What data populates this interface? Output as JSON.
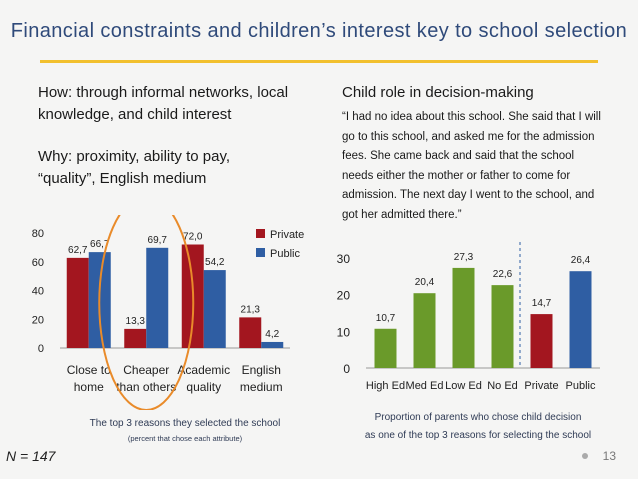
{
  "slide": {
    "title": "Financial constraints and children’s interest key to school selection",
    "how_line1": "How: through informal networks, local",
    "how_line2": "knowledge, and child interest",
    "why_line1": "Why: proximity, ability to pay,",
    "why_line2": "“quality”, English medium",
    "right_heading": "Child role in decision-making",
    "quote": "“I had no idea about this school. She said that I will go to this school, and asked me for the admission fees. She came back and said that the school needs either the mother or father to come for admission. The next day I went to the school, and got her admitted there.”",
    "left_caption_1": "The top 3 reasons they selected the school",
    "left_caption_2": "(percent that chose each attribute)",
    "right_caption_1": "Proportion of parents who chose child decision",
    "right_caption_2": "as one of the top 3 reasons for selecting the school",
    "n_label": "N = 147",
    "page_number": "13"
  },
  "chart_data": [
    {
      "type": "bar",
      "categories": [
        [
          "Close to",
          "home"
        ],
        [
          "Cheaper",
          "than others"
        ],
        [
          "Academic",
          "quality"
        ],
        [
          "English",
          "medium"
        ]
      ],
      "series": [
        {
          "name": "Private",
          "color": "#a3161f",
          "values": [
            62.7,
            13.3,
            72.0,
            21.3
          ],
          "labels": [
            "62,7",
            "13,3",
            "72,0",
            "21,3"
          ]
        },
        {
          "name": "Public",
          "color": "#2f5ea3",
          "values": [
            66.7,
            69.7,
            54.2,
            4.2
          ],
          "labels": [
            "66,7",
            "69,7",
            "54,2",
            "4,2"
          ]
        }
      ],
      "ylim": [
        0,
        80
      ],
      "yticks": [
        "0",
        "20",
        "40",
        "60",
        "80"
      ],
      "legend": "right",
      "highlight": "ellipse around Cheaper than others",
      "highlight_color": "#e98b2a"
    },
    {
      "type": "bar",
      "categories": [
        "High Ed",
        "Med Ed",
        "Low Ed",
        "No Ed",
        "Private",
        "Public"
      ],
      "values": [
        10.7,
        20.4,
        27.3,
        22.6,
        14.7,
        26.4
      ],
      "labels": [
        "10,7",
        "20,4",
        "27,3",
        "22,6",
        "14,7",
        "26,4"
      ],
      "colors": [
        "#6a9a2a",
        "#6a9a2a",
        "#6a9a2a",
        "#6a9a2a",
        "#a3161f",
        "#2f5ea3"
      ],
      "ylim": [
        0,
        30
      ],
      "yticks": [
        "0",
        "10",
        "20",
        "30"
      ],
      "separator": "dashed line between No Ed and Private"
    }
  ]
}
